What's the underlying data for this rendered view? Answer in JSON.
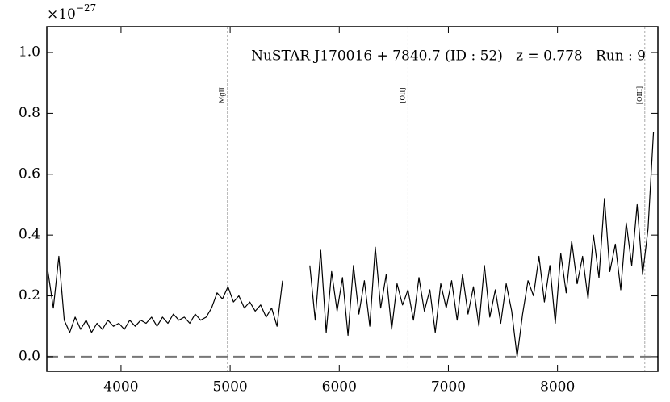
{
  "chart_data": {
    "type": "line",
    "title": "NuSTAR J170016 + 7840.7 (ID : 52)   z = 0.778   Run : 9",
    "y_multiplier": {
      "base": "×10",
      "exponent": "−27"
    },
    "color": "#000000",
    "xlim": [
      3320,
      8920
    ],
    "ylim": [
      -0.048,
      1.085
    ],
    "xticks": [
      4000,
      5000,
      6000,
      7000,
      8000
    ],
    "yticks": [
      {
        "value": 0,
        "label": "0.0"
      },
      0.2,
      0.4,
      0.6,
      0.8,
      {
        "value": 1,
        "label": "1.0"
      }
    ],
    "hlines": [
      0
    ],
    "vlines": [
      {
        "x": 4975,
        "label": "MgII"
      },
      {
        "x": 6630,
        "label": "[OII]"
      },
      {
        "x": 8800,
        "label": "[OIII]"
      }
    ],
    "x": [
      3330,
      3380,
      3430,
      3480,
      3530,
      3580,
      3630,
      3680,
      3730,
      3780,
      3830,
      3880,
      3930,
      3980,
      4030,
      4080,
      4130,
      4180,
      4230,
      4280,
      4330,
      4380,
      4430,
      4480,
      4530,
      4580,
      4630,
      4680,
      4730,
      4780,
      4830,
      4880,
      4930,
      4980,
      5030,
      5080,
      5130,
      5180,
      5230,
      5280,
      5330,
      5380,
      5430,
      5480,
      5530,
      5580,
      5630,
      5680,
      5730,
      5780,
      5830,
      5880,
      5930,
      5980,
      6030,
      6080,
      6130,
      6180,
      6230,
      6280,
      6330,
      6380,
      6430,
      6480,
      6530,
      6580,
      6630,
      6680,
      6730,
      6780,
      6830,
      6880,
      6930,
      6980,
      7030,
      7080,
      7130,
      7180,
      7230,
      7280,
      7330,
      7380,
      7430,
      7480,
      7530,
      7580,
      7630,
      7680,
      7730,
      7780,
      7830,
      7880,
      7930,
      7980,
      8030,
      8080,
      8130,
      8180,
      8230,
      8280,
      8330,
      8380,
      8430,
      8480,
      8530,
      8580,
      8630,
      8680,
      8730,
      8780,
      8830,
      8880
    ],
    "values": [
      0.28,
      0.16,
      0.33,
      0.12,
      0.08,
      0.13,
      0.09,
      0.12,
      0.08,
      0.11,
      0.09,
      0.12,
      0.1,
      0.11,
      0.09,
      0.12,
      0.1,
      0.12,
      0.11,
      0.13,
      0.1,
      0.13,
      0.11,
      0.14,
      0.12,
      0.13,
      0.11,
      0.14,
      0.12,
      0.13,
      0.16,
      0.21,
      0.19,
      0.23,
      0.18,
      0.2,
      0.16,
      0.18,
      0.15,
      0.17,
      0.13,
      0.16,
      0.1,
      0.25,
      null,
      null,
      null,
      null,
      0.3,
      0.12,
      0.35,
      0.08,
      0.28,
      0.15,
      0.26,
      0.07,
      0.3,
      0.14,
      0.25,
      0.1,
      0.36,
      0.16,
      0.27,
      0.09,
      0.24,
      0.17,
      0.22,
      0.12,
      0.26,
      0.15,
      0.22,
      0.08,
      0.24,
      0.16,
      0.25,
      0.12,
      0.27,
      0.14,
      0.23,
      0.1,
      0.3,
      0.13,
      0.22,
      0.11,
      0.24,
      0.15,
      0.0,
      0.14,
      0.25,
      0.2,
      0.33,
      0.18,
      0.3,
      0.11,
      0.34,
      0.21,
      0.38,
      0.24,
      0.33,
      0.19,
      0.4,
      0.26,
      0.52,
      0.28,
      0.37,
      0.22,
      0.44,
      0.3,
      0.5,
      0.27,
      0.42,
      0.74
    ]
  }
}
